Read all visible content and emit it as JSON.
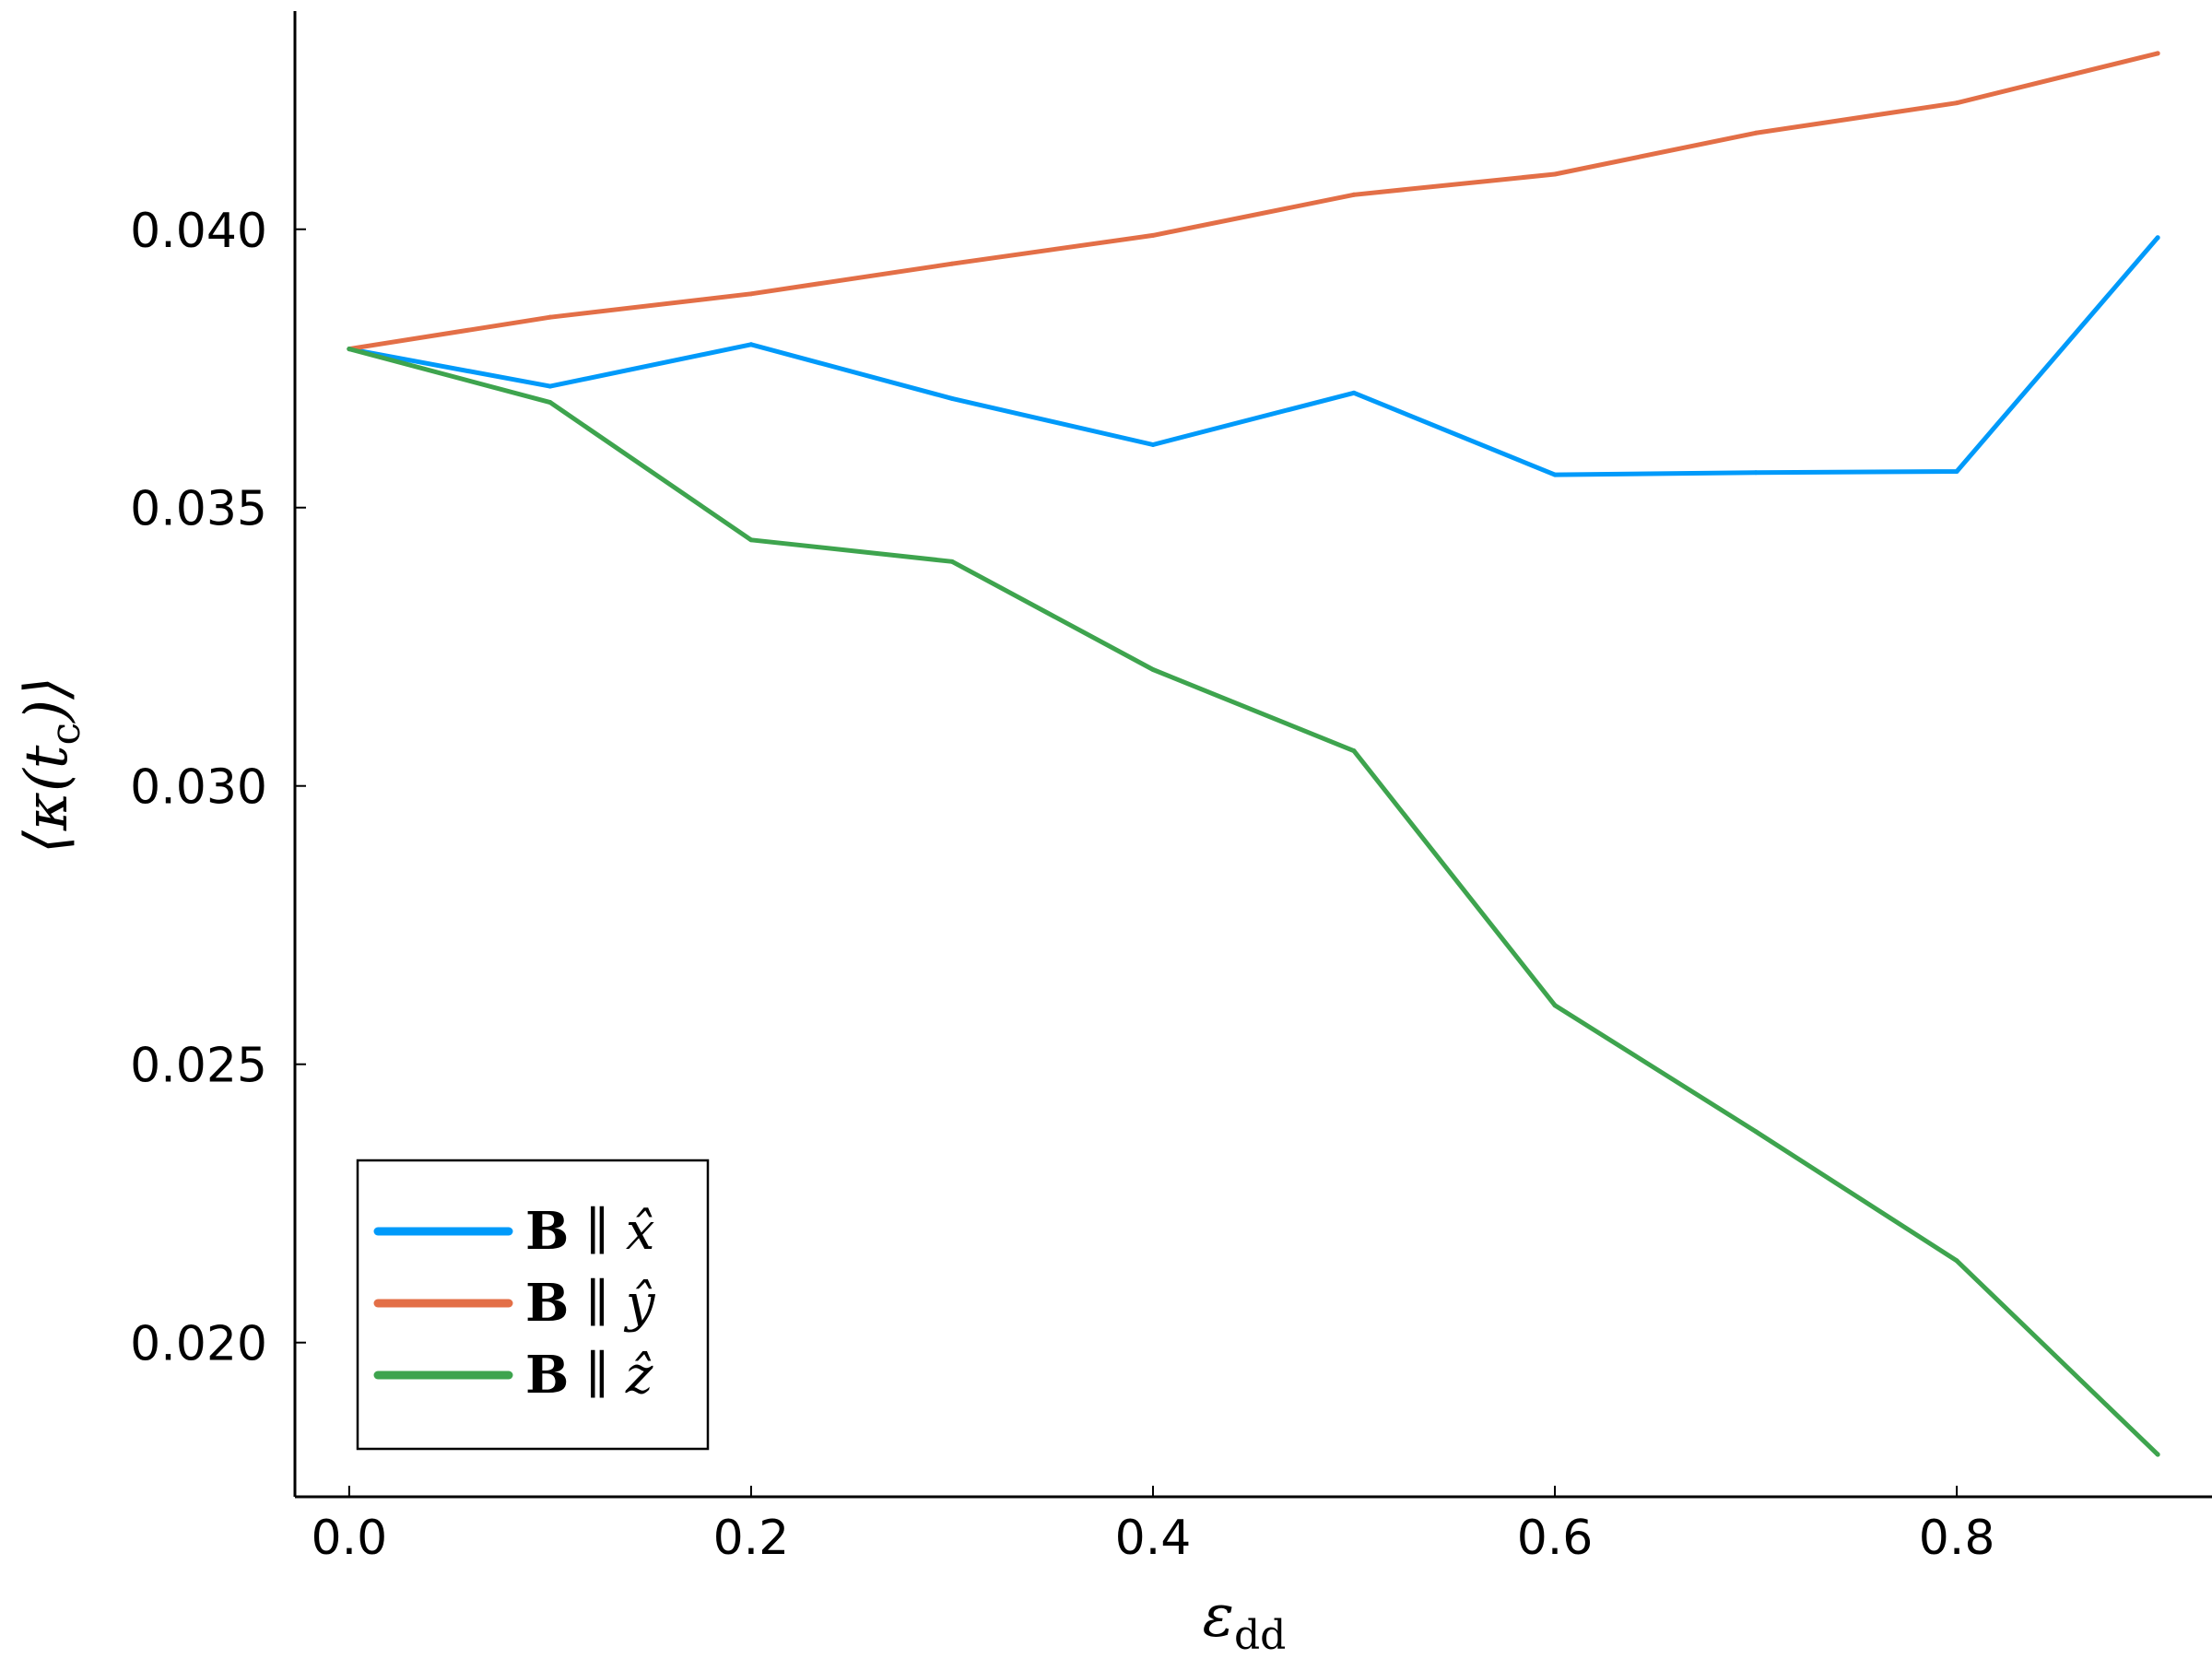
{
  "chart_data": {
    "type": "line",
    "xlabel": "ε",
    "xlabel_sub": "dd",
    "ylabel": "⟨κ(t",
    "ylabel_sub": "c",
    "ylabel_tail": ")⟩",
    "x": [
      0.0,
      0.1,
      0.2,
      0.3,
      0.4,
      0.5,
      0.6,
      0.7,
      0.8,
      0.9
    ],
    "xlim": [
      -0.027,
      0.927
    ],
    "ylim": [
      0.01723,
      0.04392
    ],
    "xticks": [
      0.0,
      0.2,
      0.4,
      0.6,
      0.8
    ],
    "xtick_labels": [
      "0.0",
      "0.2",
      "0.4",
      "0.6",
      "0.8"
    ],
    "yticks": [
      0.02,
      0.025,
      0.03,
      0.035,
      0.04
    ],
    "ytick_labels": [
      "0.020",
      "0.025",
      "0.030",
      "0.035",
      "0.040"
    ],
    "grid": false,
    "legend_position": "bottom-left",
    "series": [
      {
        "name": "B ∥ x̂",
        "legend_bold": "B",
        "legend_rest": " ∥ x̂",
        "color": "#009AFA",
        "values": [
          0.03785,
          0.03718,
          0.03793,
          0.03696,
          0.03613,
          0.03706,
          0.03559,
          0.03563,
          0.03565,
          0.03985
        ]
      },
      {
        "name": "B ∥ ŷ",
        "legend_bold": "B",
        "legend_rest": " ∥ ŷ",
        "color": "#E36F47",
        "values": [
          0.03785,
          0.03842,
          0.03884,
          0.03938,
          0.03989,
          0.04062,
          0.04099,
          0.04173,
          0.04227,
          0.04316
        ]
      },
      {
        "name": "B ∥ ẑ",
        "legend_bold": "B",
        "legend_rest": " ∥ ẑ",
        "color": "#3EA44E",
        "values": [
          0.03785,
          0.03689,
          0.03442,
          0.03403,
          0.03209,
          0.03063,
          0.02606,
          0.02379,
          0.02147,
          0.01799
        ]
      }
    ]
  }
}
